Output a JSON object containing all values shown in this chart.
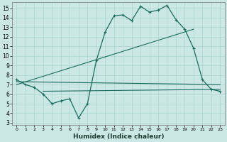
{
  "xlabel": "Humidex (Indice chaleur)",
  "bg_color": "#cce8e4",
  "line_color": "#1a6b5e",
  "grid_color": "#aad4ce",
  "xlim": [
    -0.5,
    23.5
  ],
  "ylim": [
    2.8,
    15.6
  ],
  "yticks": [
    3,
    4,
    5,
    6,
    7,
    8,
    9,
    10,
    11,
    12,
    13,
    14,
    15
  ],
  "xticks": [
    0,
    1,
    2,
    3,
    4,
    5,
    6,
    7,
    8,
    9,
    10,
    11,
    12,
    13,
    14,
    15,
    16,
    17,
    18,
    19,
    20,
    21,
    22,
    23
  ],
  "main_line_x": [
    0,
    1,
    2,
    3,
    4,
    5,
    6,
    7,
    8,
    9,
    10,
    11,
    12,
    13,
    14,
    15,
    16,
    17,
    18,
    19,
    20,
    21,
    22,
    23
  ],
  "main_line_y": [
    7.5,
    7.0,
    6.7,
    6.0,
    5.0,
    5.3,
    5.5,
    3.5,
    5.0,
    9.5,
    12.5,
    14.2,
    14.3,
    13.7,
    15.2,
    14.6,
    14.8,
    15.3,
    13.8,
    12.8,
    10.8,
    7.5,
    6.5,
    6.3
  ],
  "diag_line1_x": [
    0,
    23
  ],
  "diag_line1_y": [
    7.3,
    7.0
  ],
  "diag_line2_x": [
    0,
    20
  ],
  "diag_line2_y": [
    7.0,
    12.8
  ],
  "flat_line_x": [
    3,
    23
  ],
  "flat_line_y": [
    6.3,
    6.5
  ]
}
